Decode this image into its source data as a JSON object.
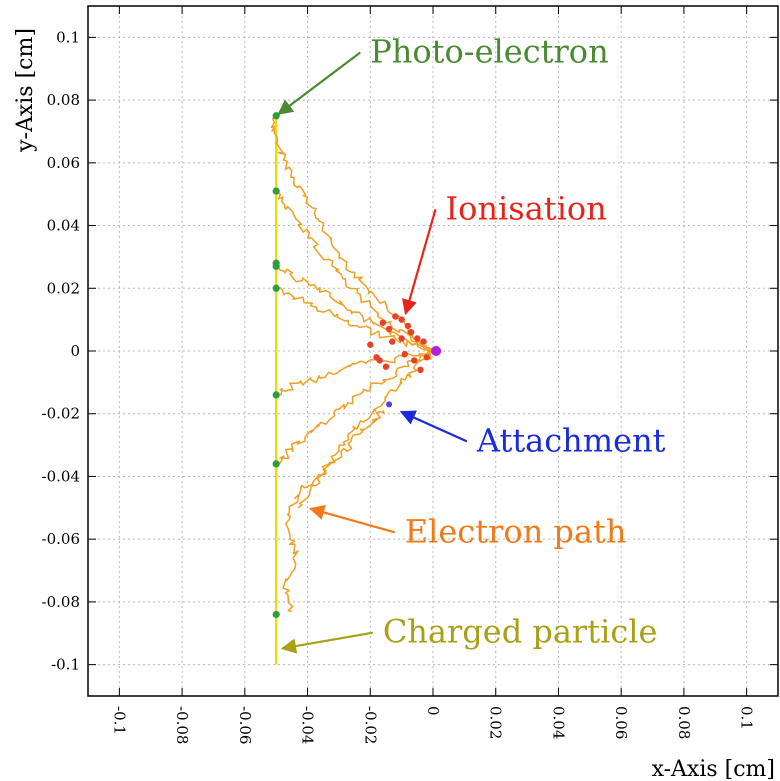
{
  "chart_data": {
    "type": "line",
    "xlabel": "x-Axis [cm]",
    "ylabel": "y-Axis [cm]",
    "xlim": [
      -0.11,
      0.11
    ],
    "ylim": [
      -0.11,
      0.11
    ],
    "grid": true,
    "x_ticks": [
      "-0.1",
      "-0.08",
      "-0.06",
      "-0.04",
      "-0.02",
      "0",
      "0.02",
      "0.04",
      "0.06",
      "0.08",
      "0.1"
    ],
    "y_ticks": [
      "0.1",
      "0.08",
      "0.06",
      "0.04",
      "0.02",
      "0",
      "-0.02",
      "-0.04",
      "-0.06",
      "-0.08",
      "-0.1"
    ],
    "charged_particle": {
      "x": [
        -0.05,
        -0.05
      ],
      "y": [
        -0.1,
        0.075
      ],
      "color": "#e8e000"
    },
    "photo_electrons": {
      "color": "#2e9e3c",
      "points": [
        [
          -0.05,
          0.075
        ],
        [
          -0.05,
          0.051
        ],
        [
          -0.05,
          0.028
        ],
        [
          -0.05,
          0.027
        ],
        [
          -0.05,
          0.02
        ],
        [
          -0.05,
          -0.014
        ],
        [
          -0.05,
          -0.036
        ],
        [
          -0.05,
          -0.084
        ]
      ]
    },
    "electron_paths": {
      "color": "#f0a020",
      "paths": [
        [
          [
            -0.05,
            0.075
          ],
          [
            -0.051,
            0.07
          ],
          [
            -0.048,
            0.062
          ],
          [
            -0.044,
            0.055
          ],
          [
            -0.04,
            0.048
          ],
          [
            -0.036,
            0.041
          ],
          [
            -0.032,
            0.034
          ],
          [
            -0.026,
            0.026
          ],
          [
            -0.02,
            0.019
          ],
          [
            -0.013,
            0.012
          ],
          [
            -0.007,
            0.006
          ],
          [
            -0.003,
            0.002
          ],
          [
            0,
            0
          ]
        ],
        [
          [
            -0.05,
            0.051
          ],
          [
            -0.047,
            0.046
          ],
          [
            -0.042,
            0.04
          ],
          [
            -0.037,
            0.033
          ],
          [
            -0.031,
            0.026
          ],
          [
            -0.025,
            0.019
          ],
          [
            -0.018,
            0.012
          ],
          [
            -0.011,
            0.007
          ],
          [
            -0.005,
            0.003
          ],
          [
            0,
            0
          ]
        ],
        [
          [
            -0.05,
            0.028
          ],
          [
            -0.045,
            0.024
          ],
          [
            -0.039,
            0.021
          ],
          [
            -0.032,
            0.017
          ],
          [
            -0.025,
            0.012
          ],
          [
            -0.017,
            0.008
          ],
          [
            -0.009,
            0.004
          ],
          [
            0,
            0
          ]
        ],
        [
          [
            -0.05,
            0.02
          ],
          [
            -0.044,
            0.017
          ],
          [
            -0.037,
            0.014
          ],
          [
            -0.029,
            0.01
          ],
          [
            -0.021,
            0.007
          ],
          [
            -0.013,
            0.004
          ],
          [
            -0.006,
            0.002
          ],
          [
            0,
            0
          ]
        ],
        [
          [
            -0.05,
            -0.014
          ],
          [
            -0.045,
            -0.011
          ],
          [
            -0.038,
            -0.009
          ],
          [
            -0.03,
            -0.006
          ],
          [
            -0.022,
            -0.004
          ],
          [
            -0.014,
            -0.003
          ],
          [
            -0.007,
            -0.001
          ],
          [
            0,
            0
          ]
        ],
        [
          [
            -0.05,
            -0.036
          ],
          [
            -0.045,
            -0.031
          ],
          [
            -0.039,
            -0.026
          ],
          [
            -0.032,
            -0.021
          ],
          [
            -0.026,
            -0.016
          ],
          [
            -0.019,
            -0.011
          ],
          [
            -0.012,
            -0.007
          ],
          [
            -0.006,
            -0.003
          ],
          [
            0,
            0
          ]
        ],
        [
          [
            -0.043,
            -0.05
          ],
          [
            -0.038,
            -0.043
          ],
          [
            -0.033,
            -0.036
          ],
          [
            -0.028,
            -0.029
          ],
          [
            -0.023,
            -0.023
          ],
          [
            -0.017,
            -0.017
          ],
          [
            -0.011,
            -0.011
          ],
          [
            -0.006,
            -0.006
          ],
          [
            0,
            0
          ]
        ],
        [
          [
            -0.045,
            -0.083
          ],
          [
            -0.047,
            -0.075
          ],
          [
            -0.044,
            -0.066
          ],
          [
            -0.045,
            -0.058
          ],
          [
            -0.047,
            -0.052
          ],
          [
            -0.043,
            -0.046
          ],
          [
            -0.036,
            -0.039
          ],
          [
            -0.029,
            -0.033
          ],
          [
            -0.024,
            -0.027
          ],
          [
            -0.019,
            -0.022
          ],
          [
            -0.016,
            -0.019
          ]
        ]
      ]
    },
    "ionisations": {
      "color": "#e8402a",
      "points": [
        [
          -0.016,
          0.009
        ],
        [
          -0.014,
          0.007
        ],
        [
          -0.012,
          0.011
        ],
        [
          -0.01,
          0.01
        ],
        [
          -0.01,
          0.004
        ],
        [
          -0.008,
          0.008
        ],
        [
          -0.007,
          0.006
        ],
        [
          -0.006,
          -0.003
        ],
        [
          -0.005,
          0.004
        ],
        [
          -0.004,
          -0.006
        ],
        [
          -0.003,
          0.003
        ],
        [
          -0.002,
          -0.002
        ],
        [
          -0.02,
          0.002
        ],
        [
          -0.017,
          -0.003
        ],
        [
          -0.015,
          -0.005
        ],
        [
          -0.018,
          -0.002
        ],
        [
          -0.013,
          0.003
        ],
        [
          -0.009,
          -0.001
        ]
      ]
    },
    "attachment": {
      "color": "#5040e0",
      "point": [
        -0.014,
        -0.017
      ]
    },
    "end_point": {
      "color": "#b020e0",
      "point": [
        0.001,
        0
      ]
    },
    "annotations": [
      {
        "text": "Photo-electron",
        "color": "#4a8a32",
        "target": [
          -0.05,
          0.075
        ],
        "text_at": [
          -0.02,
          0.092
        ]
      },
      {
        "text": "Ionisation",
        "color": "#e8241a",
        "target": [
          -0.009,
          0.011
        ],
        "text_at": [
          0.004,
          0.042
        ]
      },
      {
        "text": "Attachment",
        "color": "#1a2adc",
        "target": [
          -0.011,
          -0.019
        ],
        "text_at": [
          0.014,
          -0.032
        ]
      },
      {
        "text": "Electron path",
        "color": "#f07a1a",
        "target": [
          -0.04,
          -0.05
        ],
        "text_at": [
          -0.009,
          -0.061
        ]
      },
      {
        "text": "Charged particle",
        "color": "#a8a016",
        "target": [
          -0.049,
          -0.095
        ],
        "text_at": [
          -0.016,
          -0.093
        ]
      }
    ]
  }
}
